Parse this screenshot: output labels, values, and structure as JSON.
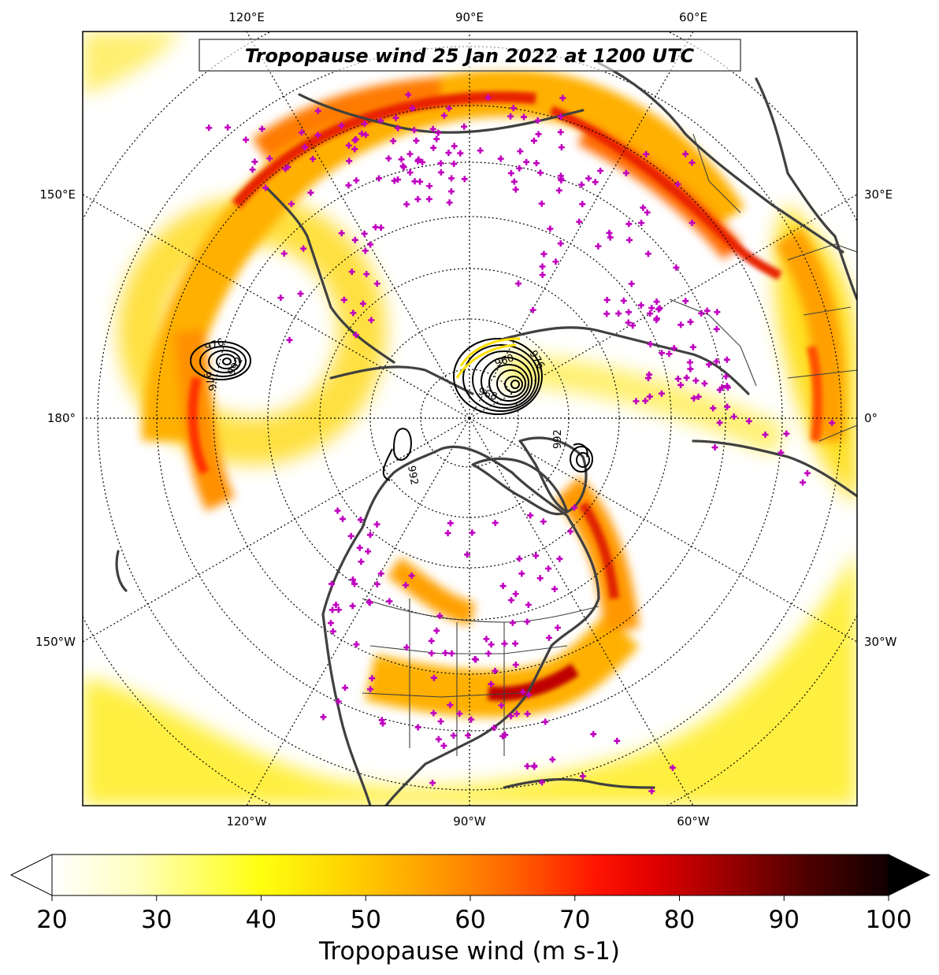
{
  "title": "Tropopause wind 25 Jan 2022 at 1200 UTC",
  "longitude_labels": {
    "top": [
      "120°E",
      "90°E",
      "60°E"
    ],
    "bottom": [
      "120°W",
      "90°W",
      "60°W"
    ],
    "left": [
      "150°E",
      "180°",
      "150°W"
    ],
    "right": [
      "30°E",
      "0°",
      "30°W"
    ]
  },
  "colorbar": {
    "label": "Tropopause wind (m s-1)",
    "min": 20,
    "max": 100,
    "ticks": [
      "20",
      "30",
      "40",
      "50",
      "60",
      "70",
      "80",
      "90",
      "100"
    ],
    "extend": "both",
    "colormap": [
      "#ffffff",
      "#ffffb0",
      "#ffff00",
      "#ffd000",
      "#ff9a00",
      "#ff5a00",
      "#ff0000",
      "#c00000",
      "#800000",
      "#400000",
      "#000000"
    ]
  },
  "pressure_contours": {
    "color": "#000000",
    "interval_hPa": 4,
    "visible_labels": [
      "960",
      "968",
      "976",
      "984",
      "992",
      "996"
    ]
  },
  "station_marker_color": "#c000c0",
  "coastline_color": "#404040"
}
